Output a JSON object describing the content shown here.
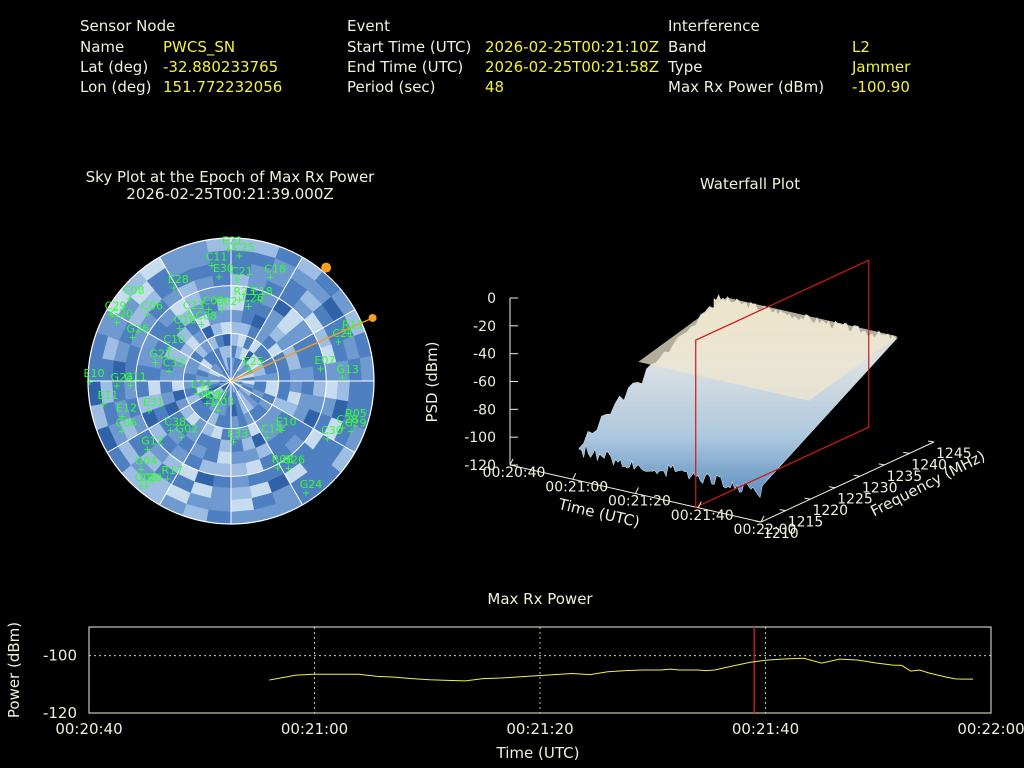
{
  "header": {
    "sensor": {
      "heading": "Sensor Node",
      "name_label": "Name",
      "name_value": "PWCS_SN",
      "lat_label": "Lat (deg)",
      "lat_value": "-32.880233765",
      "lon_label": "Lon (deg)",
      "lon_value": "151.772232056"
    },
    "event": {
      "heading": "Event",
      "start_label": "Start Time (UTC)",
      "start_value": "2026-02-25T00:21:10Z",
      "end_label": "End Time (UTC)",
      "end_value": "2026-02-25T00:21:58Z",
      "period_label": "Period (sec)",
      "period_value": "48"
    },
    "interference": {
      "heading": "Interference",
      "band_label": "Band",
      "band_value": "L2",
      "type_label": "Type",
      "type_value": "Jammer",
      "power_label": "Max Rx Power (dBm)",
      "power_value": "-100.90"
    }
  },
  "chart_data": [
    {
      "type": "scatter",
      "title": "Sky Plot at the Epoch of Max Rx Power",
      "subtitle": "2026-02-25T00:21:39.000Z",
      "projection": "polar",
      "satellites": [
        {
          "id": "E21",
          "az": 0,
          "el": 88
        },
        {
          "id": "C25",
          "az": 5,
          "el": 84
        },
        {
          "id": "C11",
          "az": 352,
          "el": 78
        },
        {
          "id": "E28",
          "az": 330,
          "el": 72
        },
        {
          "id": "E30",
          "az": 355,
          "el": 70
        },
        {
          "id": "C21",
          "az": 5,
          "el": 68
        },
        {
          "id": "C18",
          "az": 22,
          "el": 75
        },
        {
          "id": "R23",
          "az": 8,
          "el": 55
        },
        {
          "id": "C26",
          "az": 15,
          "el": 52
        },
        {
          "id": "C23",
          "az": 330,
          "el": 52
        },
        {
          "id": "C09",
          "az": 345,
          "el": 50
        },
        {
          "id": "C02",
          "az": 355,
          "el": 48
        },
        {
          "id": "C08",
          "az": 335,
          "el": 42
        },
        {
          "id": "G18",
          "az": 318,
          "el": 48
        },
        {
          "id": "R11",
          "az": 68,
          "el": 86
        },
        {
          "id": "C21",
          "az": 70,
          "el": 78
        },
        {
          "id": "E07",
          "az": 82,
          "el": 62
        },
        {
          "id": "G13",
          "az": 88,
          "el": 76
        },
        {
          "id": "G20",
          "az": 298,
          "el": 84
        },
        {
          "id": "G26",
          "az": 295,
          "el": 70
        },
        {
          "id": "G21",
          "az": 285,
          "el": 50
        },
        {
          "id": "C33",
          "az": 280,
          "el": 40
        },
        {
          "id": "G24",
          "az": 268,
          "el": 74
        },
        {
          "id": "G11",
          "az": 268,
          "el": 65
        },
        {
          "id": "E10",
          "az": 270,
          "el": 92
        },
        {
          "id": "E11",
          "az": 260,
          "el": 84
        },
        {
          "id": "E12",
          "az": 252,
          "el": 74
        },
        {
          "id": "E31",
          "az": 250,
          "el": 56
        },
        {
          "id": "C38",
          "az": 230,
          "el": 50
        },
        {
          "id": "C06",
          "az": 245,
          "el": 78
        },
        {
          "id": "C32",
          "az": 250,
          "el": 22
        },
        {
          "id": "E25",
          "az": 60,
          "el": 16
        },
        {
          "id": "R05",
          "az": 225,
          "el": 20
        },
        {
          "id": "C37",
          "az": 215,
          "el": 18
        },
        {
          "id": "G03",
          "az": 200,
          "el": 20
        },
        {
          "id": "G02",
          "az": 220,
          "el": 48
        },
        {
          "id": "G12",
          "az": 230,
          "el": 70
        },
        {
          "id": "G04",
          "az": 225,
          "el": 82
        },
        {
          "id": "C29",
          "az": 218,
          "el": 88
        },
        {
          "id": "R17",
          "az": 212,
          "el": 76
        },
        {
          "id": "G08",
          "az": 220,
          "el": 90
        },
        {
          "id": "E33",
          "az": 175,
          "el": 40
        },
        {
          "id": "C14",
          "az": 145,
          "el": 45
        },
        {
          "id": "E10",
          "az": 132,
          "el": 48
        },
        {
          "id": "R08",
          "az": 150,
          "el": 66
        },
        {
          "id": "G26",
          "az": 145,
          "el": 70
        },
        {
          "id": "C30",
          "az": 120,
          "el": 76
        },
        {
          "id": "C28",
          "az": 112,
          "el": 82
        },
        {
          "id": "R05",
          "az": 108,
          "el": 86
        },
        {
          "id": "C29",
          "az": 112,
          "el": 88
        },
        {
          "id": "G24",
          "az": 145,
          "el": 90
        },
        {
          "id": "C10",
          "az": 300,
          "el": 45
        },
        {
          "id": "C06",
          "az": 310,
          "el": 70
        },
        {
          "id": "E18",
          "az": 20,
          "el": 58
        },
        {
          "id": "C29",
          "az": 300,
          "el": 90
        },
        {
          "id": "C08",
          "az": 310,
          "el": 86
        }
      ],
      "jammer_direction_az": 66
    },
    {
      "type": "area",
      "title": "Waterfall Plot",
      "xlabel": "Time (UTC)",
      "xticks": [
        "00:20:40",
        "00:21:00",
        "00:21:20",
        "00:21:40",
        "00:22:00"
      ],
      "ylabel": "Frequency (MHz)",
      "yticks": [
        1210,
        1215,
        1220,
        1225,
        1230,
        1235,
        1240,
        1245
      ],
      "zlabel": "PSD (dBm)",
      "zticks": [
        0,
        -20,
        -40,
        -60,
        -80,
        -100,
        -120
      ],
      "zlim": [
        -120,
        0
      ],
      "marker_time": "00:21:39"
    },
    {
      "type": "line",
      "title": "Max Rx Power",
      "xlabel": "Time (UTC)",
      "ylabel": "Power (dBm)",
      "xticks": [
        "00:20:40",
        "00:21:00",
        "00:21:20",
        "00:21:40",
        "00:22:00"
      ],
      "yticks": [
        -100,
        -120
      ],
      "ylim": [
        -120,
        -90
      ],
      "x_seconds": [
        0,
        3,
        5,
        8,
        10,
        12,
        14,
        16,
        18,
        20,
        22,
        24,
        26,
        28,
        30,
        32,
        34,
        36,
        38,
        40,
        42,
        44,
        45,
        46,
        47,
        48,
        49,
        50,
        52,
        54,
        56,
        58,
        60,
        62,
        64,
        66,
        67,
        68,
        70,
        71,
        72,
        73,
        74,
        76,
        77,
        78,
        79
      ],
      "values": [
        -108.5,
        -106.8,
        -106.5,
        -106.5,
        -106.5,
        -107.2,
        -107.5,
        -108.0,
        -108.4,
        -108.6,
        -108.8,
        -108.0,
        -107.8,
        -107.4,
        -107.0,
        -106.6,
        -106.2,
        -106.6,
        -105.6,
        -105.2,
        -105.0,
        -105.0,
        -104.7,
        -105.0,
        -105.0,
        -105.0,
        -105.2,
        -105.0,
        -103.6,
        -102.3,
        -101.5,
        -101.1,
        -100.9,
        -102.6,
        -101.2,
        -101.5,
        -102.0,
        -102.5,
        -103.3,
        -103.4,
        -105.4,
        -105.0,
        -106.0,
        -107.5,
        -108.1,
        -108.2,
        -108.2
      ],
      "marker_time": "00:21:39",
      "color": "#f2f23c"
    }
  ]
}
